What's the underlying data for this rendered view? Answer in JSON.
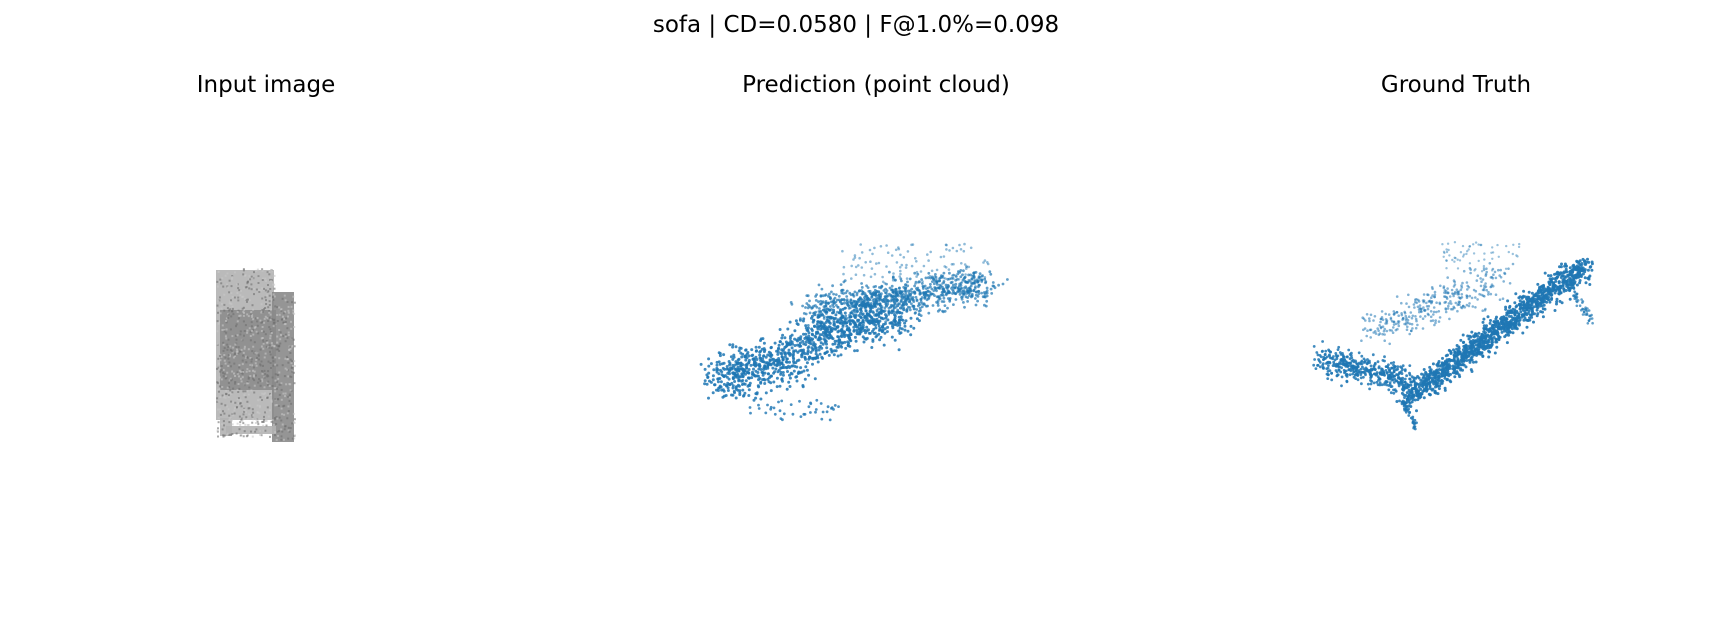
{
  "figure": {
    "suptitle": "sofa | CD=0.0580 | F@1.0%=0.098"
  },
  "panels": {
    "input": {
      "title": "Input image"
    },
    "prediction": {
      "title": "Prediction (point cloud)"
    },
    "ground_truth": {
      "title": "Ground Truth"
    }
  },
  "colors": {
    "point": "#1f77b4",
    "input_dark": "#8a8a8a",
    "input_light": "#b3b3b3"
  }
}
